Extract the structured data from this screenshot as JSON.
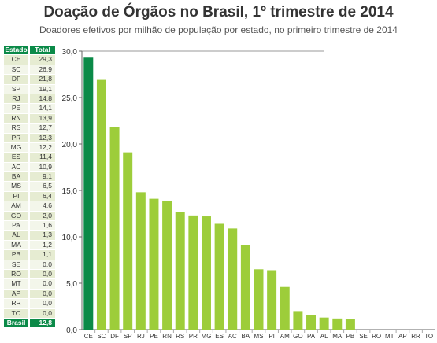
{
  "title": "Doação de Órgãos no Brasil, 1º trimestre de 2014",
  "subtitle": "Doadores efetivos por milhão de população por estado, no primeiro trimestre de 2014",
  "colors": {
    "highlight": "#0b8a48",
    "bar": "#9dcd3a",
    "axis": "#666666",
    "table_header": "#0b8a48"
  },
  "table": {
    "header": [
      "Estado",
      "Total"
    ],
    "rows": [
      [
        "CE",
        "29,3"
      ],
      [
        "SC",
        "26,9"
      ],
      [
        "DF",
        "21,8"
      ],
      [
        "SP",
        "19,1"
      ],
      [
        "RJ",
        "14,8"
      ],
      [
        "PE",
        "14,1"
      ],
      [
        "RN",
        "13,9"
      ],
      [
        "RS",
        "12,7"
      ],
      [
        "PR",
        "12,3"
      ],
      [
        "MG",
        "12,2"
      ],
      [
        "ES",
        "11,4"
      ],
      [
        "AC",
        "10,9"
      ],
      [
        "BA",
        "9,1"
      ],
      [
        "MS",
        "6,5"
      ],
      [
        "PI",
        "6,4"
      ],
      [
        "AM",
        "4,6"
      ],
      [
        "GO",
        "2,0"
      ],
      [
        "PA",
        "1,6"
      ],
      [
        "AL",
        "1,3"
      ],
      [
        "MA",
        "1,2"
      ],
      [
        "PB",
        "1,1"
      ],
      [
        "SE",
        "0,0"
      ],
      [
        "RO",
        "0,0"
      ],
      [
        "MT",
        "0,0"
      ],
      [
        "AP",
        "0,0"
      ],
      [
        "RR",
        "0,0"
      ],
      [
        "TO",
        "0,0"
      ]
    ],
    "total": [
      "Brasil",
      "12,8"
    ]
  },
  "chart_data": {
    "type": "bar",
    "categories": [
      "CE",
      "SC",
      "DF",
      "SP",
      "RJ",
      "PE",
      "RN",
      "RS",
      "PR",
      "MG",
      "ES",
      "AC",
      "BA",
      "MS",
      "PI",
      "AM",
      "GO",
      "PA",
      "AL",
      "MA",
      "PB",
      "SE",
      "RO",
      "MT",
      "AP",
      "RR",
      "TO"
    ],
    "values": [
      29.3,
      26.9,
      21.8,
      19.1,
      14.8,
      14.1,
      13.9,
      12.7,
      12.3,
      12.2,
      11.4,
      10.9,
      9.1,
      6.5,
      6.4,
      4.6,
      2.0,
      1.6,
      1.3,
      1.2,
      1.1,
      0,
      0,
      0,
      0,
      0,
      0
    ],
    "highlight_index": 0,
    "ylim": [
      0,
      30
    ],
    "yticks": [
      "0,0",
      "5,0",
      "10,0",
      "15,0",
      "20,0",
      "25,0",
      "30,0"
    ],
    "grid": false
  }
}
